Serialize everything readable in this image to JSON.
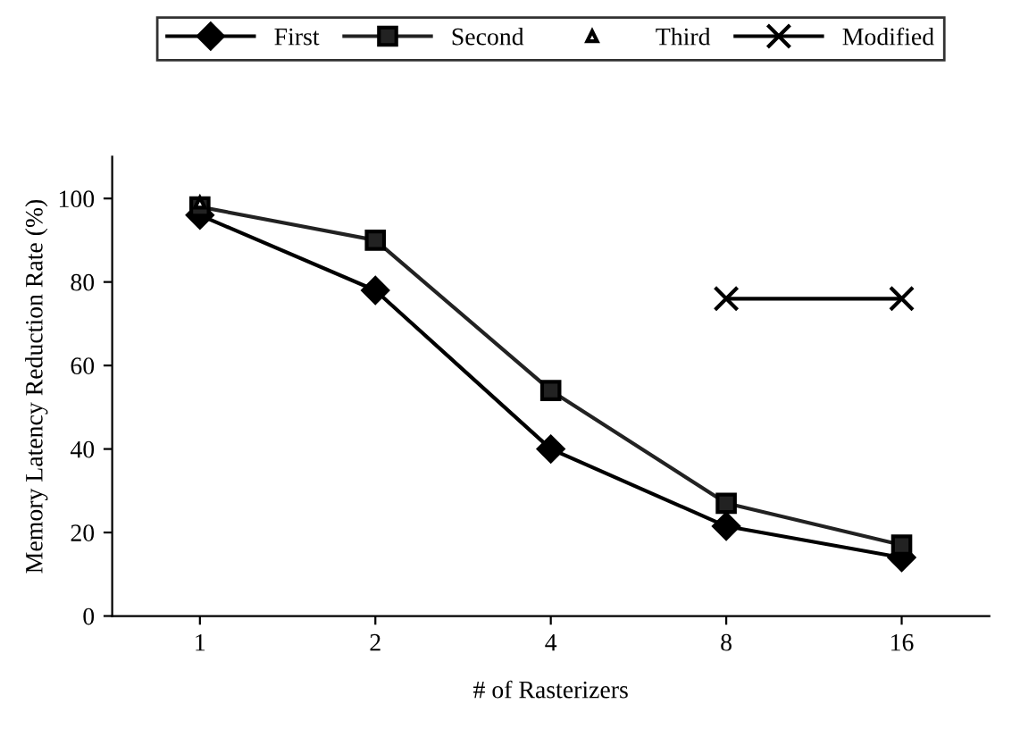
{
  "chart_data": {
    "type": "line",
    "xlabel": "# of Rasterizers",
    "ylabel": "Memory Latency Reduction Rate (%)",
    "categories": [
      "1",
      "2",
      "4",
      "8",
      "16"
    ],
    "series": [
      {
        "name": "First",
        "color": "#000000",
        "marker": "diamond",
        "values": [
          96,
          78,
          40,
          21.5,
          14
        ]
      },
      {
        "name": "Second",
        "color": "#222222",
        "marker": "square",
        "values": [
          98,
          90,
          54,
          27,
          17
        ]
      },
      {
        "name": "Third",
        "color": "#ffffff",
        "marker": "triangle",
        "values": [
          99,
          null,
          null,
          null,
          null
        ]
      },
      {
        "name": "Modified",
        "color": "#000000",
        "marker": "cross",
        "values": [
          null,
          null,
          null,
          76,
          76
        ]
      }
    ],
    "ylim": [
      0,
      110
    ],
    "yticks": [
      0,
      20,
      40,
      60,
      80,
      100
    ],
    "grid": false,
    "legend": "top"
  }
}
